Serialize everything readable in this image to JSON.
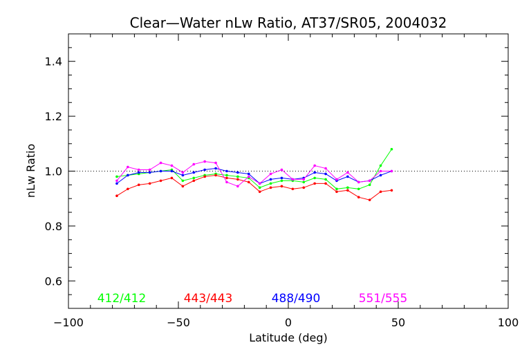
{
  "chart_data": {
    "type": "line",
    "title": "Clear—Water nLw Ratio, AT37/SR05, 2004032",
    "xlabel": "Latitude (deg)",
    "ylabel": "nLw Ratio",
    "xlim": [
      -100,
      100
    ],
    "ylim": [
      0.5,
      1.5
    ],
    "xticks": [
      -100,
      -50,
      0,
      50,
      100
    ],
    "xtick_labels": [
      "−100",
      "−50",
      "0",
      "50",
      "100"
    ],
    "yticks": [
      0.6,
      0.8,
      1.0,
      1.2,
      1.4
    ],
    "ytick_labels": [
      "0.6",
      "0.8",
      "1.0",
      "1.2",
      "1.4"
    ],
    "reference_line": 1.0,
    "grid": false,
    "legend_placement": "bottom inside plot, horizontal",
    "x": [
      -78,
      -73,
      -68,
      -63,
      -58,
      -53,
      -48,
      -43,
      -38,
      -33,
      -28,
      -23,
      -18,
      -13,
      -8,
      -3,
      2,
      7,
      12,
      17,
      22,
      27,
      32,
      37,
      42,
      47
    ],
    "series": [
      {
        "name": "412/412",
        "color": "#00ff00",
        "values": [
          0.98,
          0.985,
          0.99,
          0.995,
          1.0,
          1.005,
          0.965,
          0.975,
          0.985,
          0.99,
          0.985,
          0.98,
          0.975,
          0.94,
          0.955,
          0.965,
          0.965,
          0.96,
          0.975,
          0.97,
          0.935,
          0.94,
          0.935,
          0.95,
          1.02,
          1.08
        ]
      },
      {
        "name": "443/443",
        "color": "#ff0000",
        "values": [
          0.91,
          0.935,
          0.95,
          0.955,
          0.965,
          0.975,
          0.945,
          0.965,
          0.98,
          0.985,
          0.975,
          0.97,
          0.96,
          0.925,
          0.94,
          0.945,
          0.935,
          0.94,
          0.955,
          0.955,
          0.925,
          0.93,
          0.905,
          0.895,
          0.925,
          0.93
        ]
      },
      {
        "name": "488/490",
        "color": "#0000ff",
        "values": [
          0.955,
          0.985,
          0.995,
          0.995,
          1.0,
          1.0,
          0.985,
          0.995,
          1.005,
          1.01,
          1.0,
          0.995,
          0.99,
          0.955,
          0.97,
          0.975,
          0.97,
          0.975,
          0.995,
          0.99,
          0.965,
          0.98,
          0.96,
          0.965,
          0.985,
          1.0
        ]
      },
      {
        "name": "551/555",
        "color": "#ff00ff",
        "values": [
          0.965,
          1.015,
          1.005,
          1.005,
          1.03,
          1.02,
          0.995,
          1.025,
          1.035,
          1.03,
          0.96,
          0.945,
          0.98,
          0.955,
          0.99,
          1.005,
          0.97,
          0.97,
          1.02,
          1.01,
          0.97,
          0.995,
          0.96,
          0.965,
          1.0,
          1.0
        ]
      }
    ]
  }
}
